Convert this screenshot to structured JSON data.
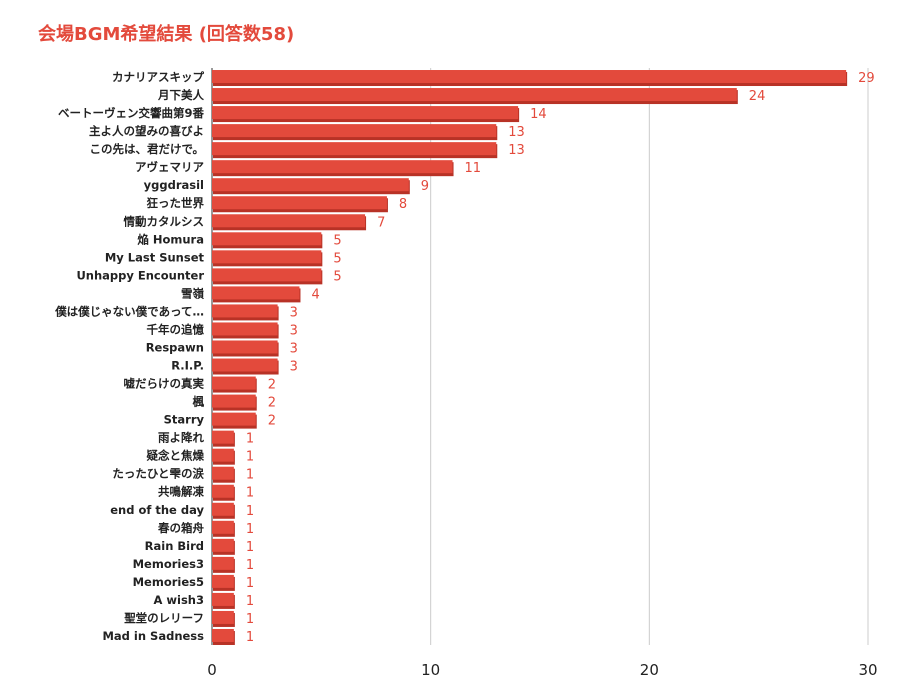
{
  "header": {
    "title": "会場BGM希望結果",
    "subtitle": "(回答数58)"
  },
  "chart_data": {
    "type": "bar",
    "orientation": "horizontal",
    "title": "会場BGM希望結果 (回答数58)",
    "categories": [
      "カナリアスキップ",
      "月下美人",
      "ベートーヴェン交響曲第9番",
      "主よ人の望みの喜びよ",
      "この先は、君だけで。",
      "アヴェマリア",
      "yggdrasil",
      "狂った世界",
      "情動カタルシス",
      "焔 Homura",
      "My Last Sunset",
      "Unhappy Encounter",
      "雪嶺",
      "僕は僕じゃない僕であって…",
      "千年の追憶",
      "Respawn",
      "R.I.P.",
      "嘘だらけの真実",
      "楓",
      "Starry",
      "雨よ降れ",
      "疑念と焦燥",
      "たったひと雫の涙",
      "共鳴解凍",
      "end of the day",
      "春の箱舟",
      "Rain Bird",
      "Memories3",
      "Memories5",
      "A wish3",
      "聖堂のレリーフ",
      "Mad in Sadness"
    ],
    "values": [
      29,
      24,
      14,
      13,
      13,
      11,
      9,
      8,
      7,
      5,
      5,
      5,
      4,
      3,
      3,
      3,
      3,
      2,
      2,
      2,
      1,
      1,
      1,
      1,
      1,
      1,
      1,
      1,
      1,
      1,
      1,
      1
    ],
    "xlim": [
      0,
      30
    ],
    "xticks": [
      0,
      10,
      20,
      30
    ],
    "grid": true,
    "data_labels": true,
    "colors": {
      "bar": "#e34a3c",
      "bar_shadow": "#b83226",
      "label": "#e34a3c",
      "title": "#e34a3c",
      "grid": "#cccccc"
    }
  }
}
